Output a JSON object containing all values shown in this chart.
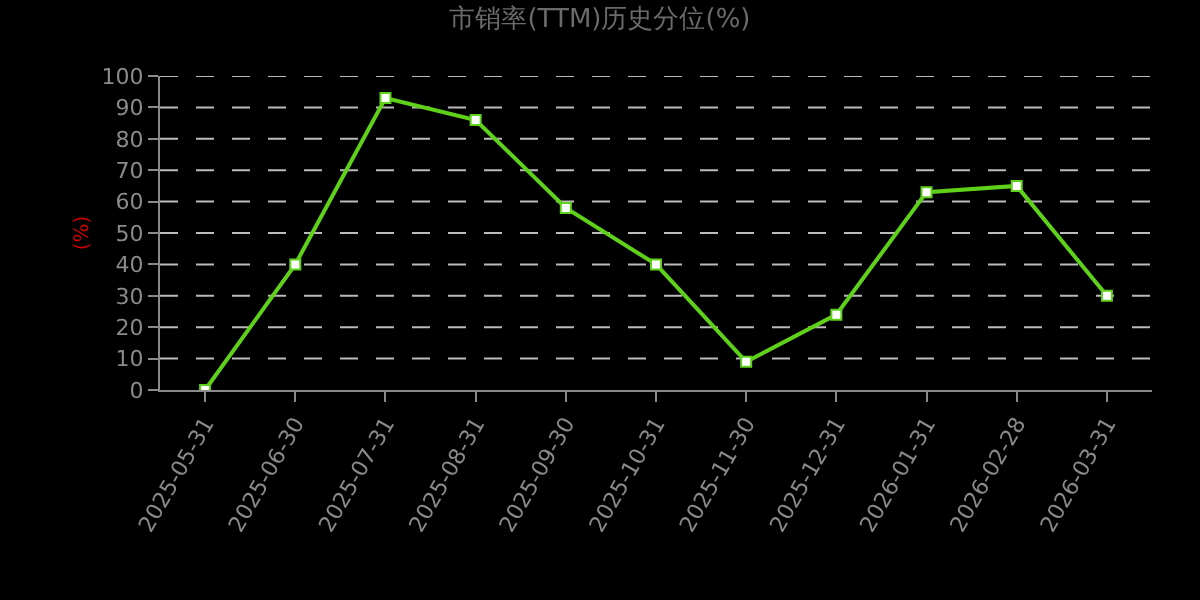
{
  "chart_data": {
    "type": "line",
    "title": "市销率(TTM)历史分位(%)",
    "ylabel": "(%)",
    "categories": [
      "2025-05-31",
      "2025-06-30",
      "2025-07-31",
      "2025-08-31",
      "2025-09-30",
      "2025-10-31",
      "2025-11-30",
      "2025-12-31",
      "2026-01-31",
      "2026-02-28",
      "2026-03-31"
    ],
    "series": [
      {
        "color": "#5fd11a",
        "values": [
          0,
          40,
          93,
          86,
          58,
          40,
          9,
          24,
          63,
          65,
          30
        ]
      }
    ],
    "ylim": [
      0,
      100
    ],
    "yticks": [
      0,
      10,
      20,
      30,
      40,
      50,
      60,
      70,
      80,
      90,
      100
    ],
    "grid": "y",
    "marker": "square",
    "line_style": "solid",
    "legend": false
  }
}
